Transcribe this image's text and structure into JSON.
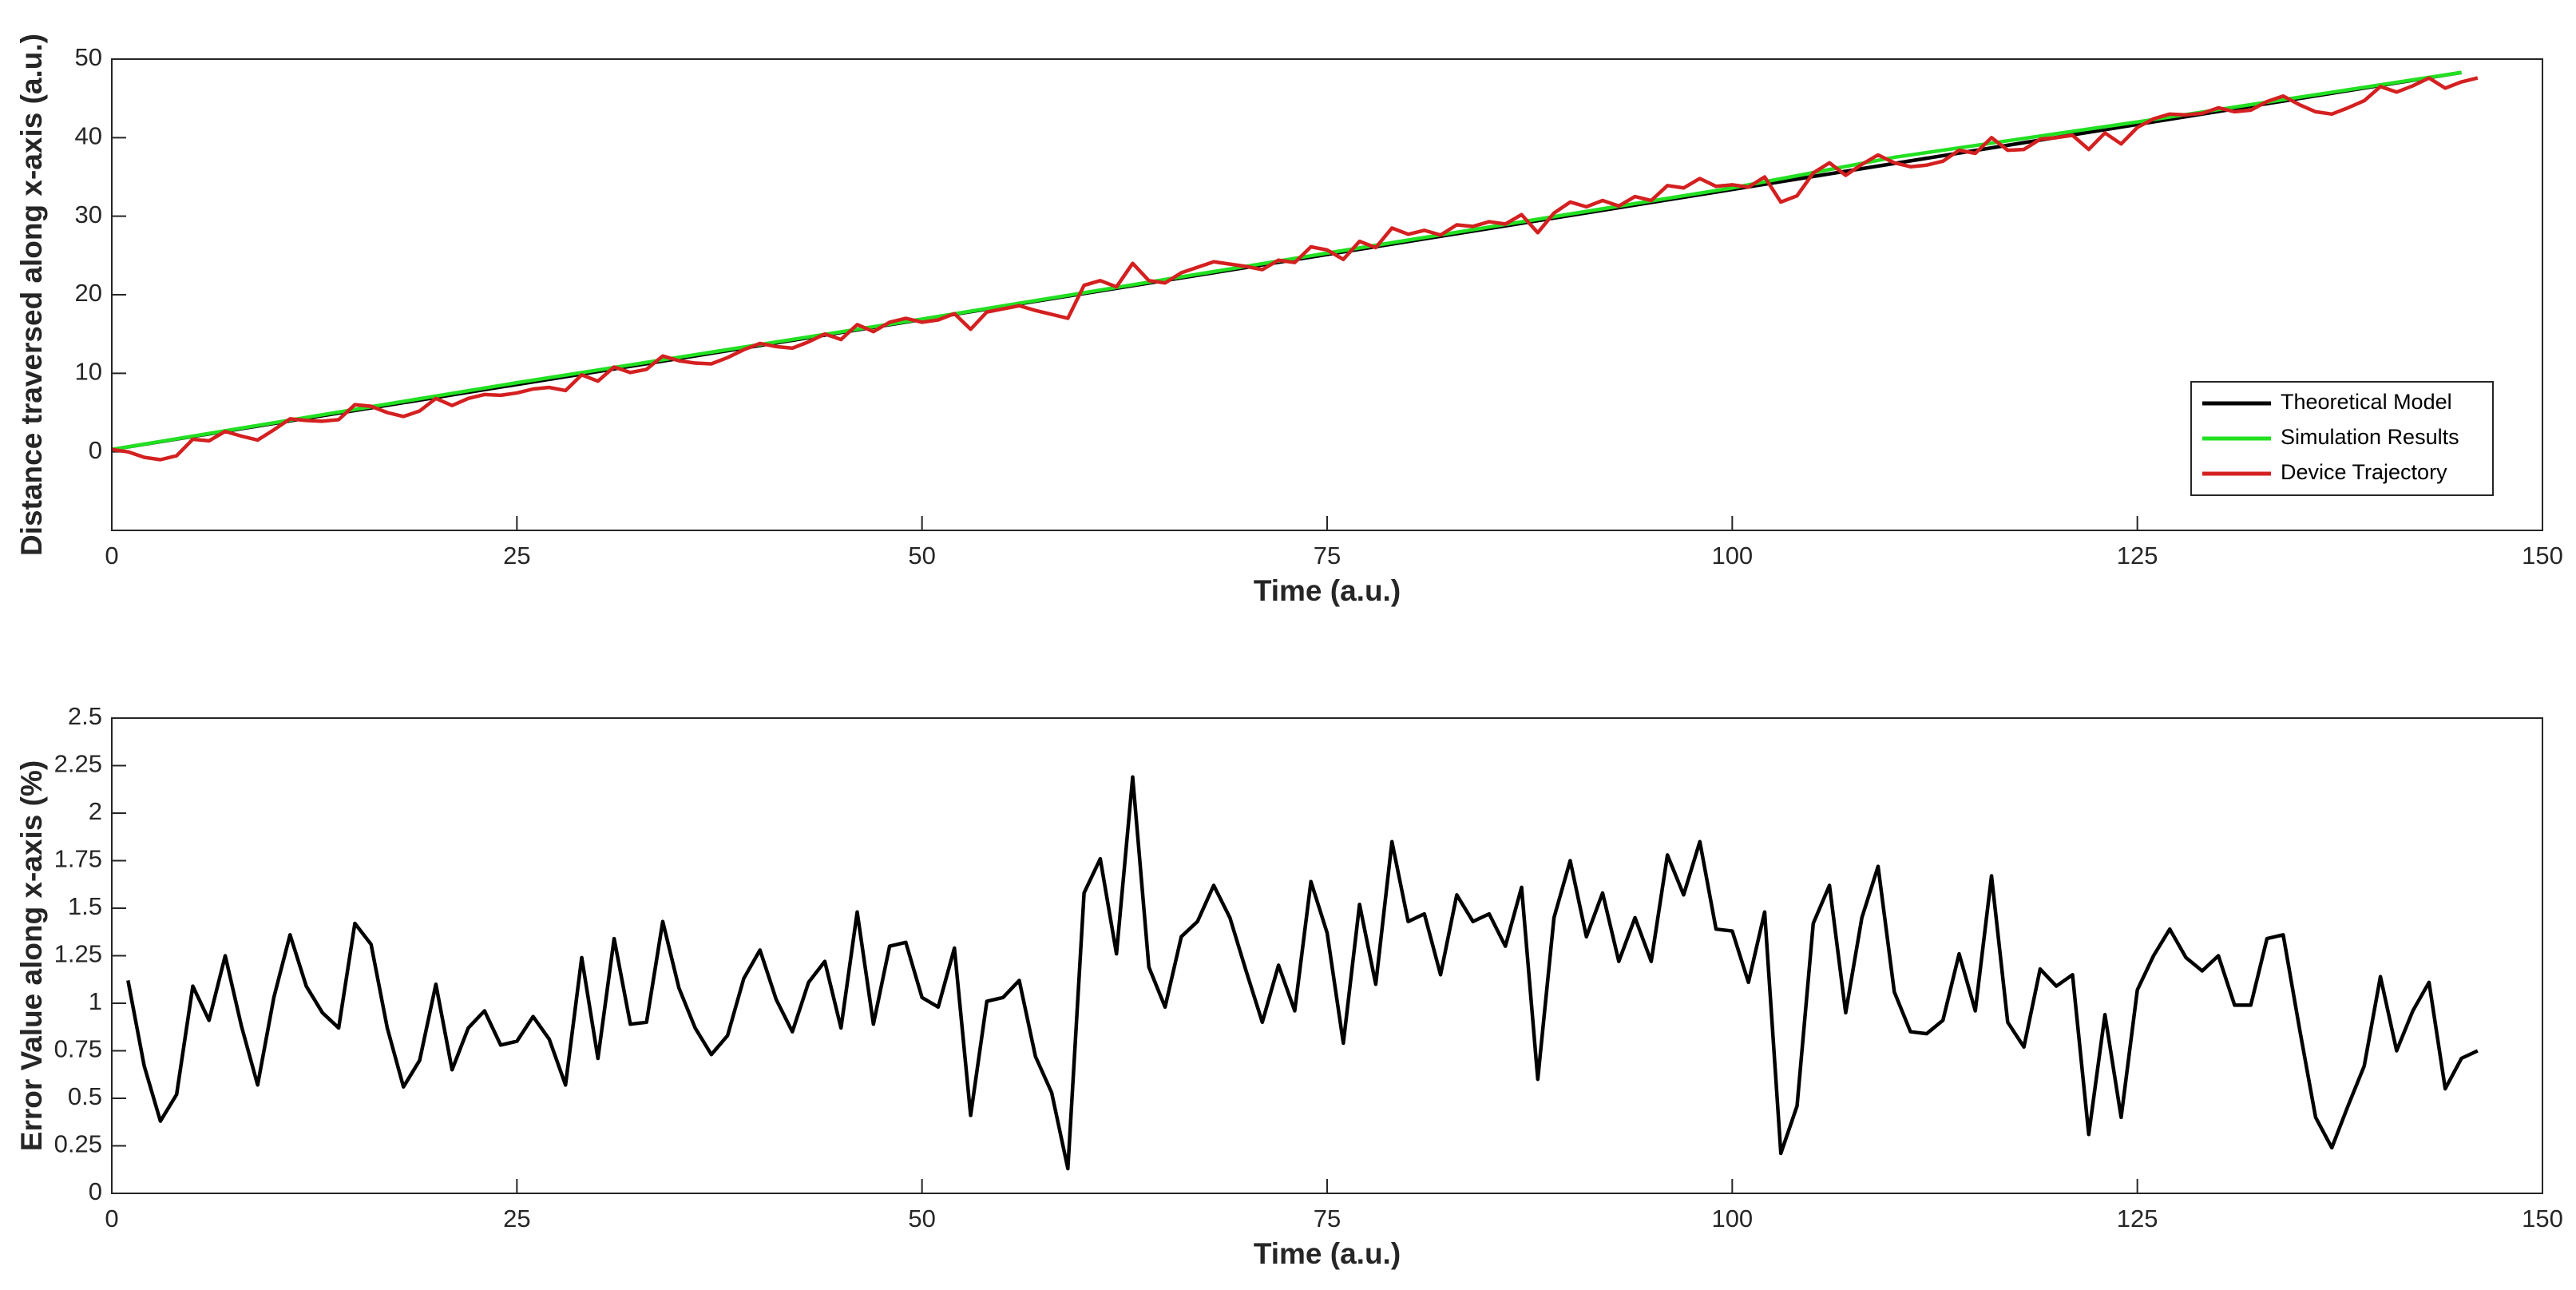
{
  "chart_data": [
    {
      "type": "line",
      "xlabel": "Time (a.u.)",
      "ylabel": "Distance traversed along x-axis (a.u.)",
      "xlim": [
        0,
        150
      ],
      "xticks": [
        0,
        25,
        50,
        75,
        100,
        125,
        150
      ],
      "ylim": [
        -10,
        50
      ],
      "yticks": [
        0,
        10,
        20,
        30,
        40,
        50
      ],
      "grid": false,
      "legend": "lower right",
      "series": [
        {
          "name": "Theoretical Model",
          "color": "#000000",
          "x": [
            0,
            145
          ],
          "values": [
            0.3,
            48.3
          ]
        },
        {
          "name": "Simulation Results",
          "color": "#22e022",
          "x": [
            0,
            25,
            50,
            75,
            100,
            110,
            125,
            145
          ],
          "values": [
            0.3,
            8.8,
            16.9,
            25.3,
            33.6,
            37.5,
            42.0,
            48.3
          ]
        },
        {
          "name": "Device Trajectory",
          "color": "#d42020",
          "x": [
            0,
            1,
            2,
            3,
            4,
            5,
            6,
            7,
            8,
            9,
            10,
            11,
            12,
            13,
            14,
            15,
            16,
            17,
            18,
            19,
            20,
            21,
            22,
            23,
            24,
            25,
            26,
            27,
            28,
            29,
            30,
            31,
            32,
            33,
            34,
            35,
            36,
            37,
            38,
            39,
            40,
            41,
            42,
            43,
            44,
            45,
            46,
            47,
            48,
            49,
            50,
            51,
            52,
            53,
            54,
            55,
            56,
            57,
            58,
            59,
            60,
            61,
            62,
            63,
            64,
            65,
            66,
            67,
            68,
            69,
            70,
            71,
            72,
            73,
            74,
            75,
            76,
            77,
            78,
            79,
            80,
            81,
            82,
            83,
            84,
            85,
            86,
            87,
            88,
            89,
            90,
            91,
            92,
            93,
            94,
            95,
            96,
            97,
            98,
            99,
            100,
            101,
            102,
            103,
            104,
            105,
            106,
            107,
            108,
            109,
            110,
            111,
            112,
            113,
            114,
            115,
            116,
            117,
            118,
            119,
            120,
            121,
            122,
            123,
            124,
            125,
            126,
            127,
            128,
            129,
            130,
            131,
            132,
            133,
            134,
            135,
            136,
            137,
            138,
            139,
            140,
            141,
            142,
            143,
            144,
            145,
            146
          ],
          "values": [
            0.3,
            0,
            -0.7,
            -1,
            -0.5,
            1.6,
            1.4,
            2.6,
            2,
            1.5,
            2.8,
            4.2,
            4,
            3.9,
            4.1,
            6,
            5.8,
            5,
            4.5,
            5.2,
            6.8,
            5.9,
            6.8,
            7.3,
            7.2,
            7.5,
            8,
            8.2,
            7.8,
            9.8,
            9,
            10.8,
            10.1,
            10.5,
            12.2,
            11.6,
            11.3,
            11.2,
            12,
            13,
            13.8,
            13.4,
            13.2,
            14,
            15,
            14.3,
            16.2,
            15.3,
            16.5,
            17,
            16.5,
            16.8,
            17.6,
            15.6,
            17.8,
            18.2,
            18.6,
            18,
            17.5,
            17,
            21.2,
            21.8,
            21,
            24,
            21.8,
            21.5,
            22.8,
            23.5,
            24.2,
            23.9,
            23.6,
            23.2,
            24.4,
            24.1,
            26.1,
            25.7,
            24.5,
            26.8,
            26,
            28.5,
            27.7,
            28.2,
            27.6,
            28.9,
            28.7,
            29.3,
            29,
            30.2,
            27.9,
            30.4,
            31.8,
            31.2,
            32,
            31.3,
            32.5,
            32,
            33.9,
            33.6,
            34.8,
            33.8,
            34,
            33.7,
            35,
            31.8,
            32.6,
            35.5,
            36.8,
            35.2,
            36.6,
            37.8,
            36.8,
            36.3,
            36.5,
            37,
            38.4,
            38,
            40,
            38.4,
            38.5,
            39.8,
            40,
            40.3,
            38.5,
            40.6,
            39.2,
            41.3,
            42.4,
            43,
            42.9,
            43.1,
            43.8,
            43.3,
            43.5,
            44.6,
            45.3,
            44.2,
            43.3,
            43,
            43.8,
            44.7,
            46.5,
            45.8,
            46.6,
            47.6,
            46.3,
            47.1,
            47.6
          ]
        }
      ]
    },
    {
      "type": "line",
      "xlabel": "Time (a.u.)",
      "ylabel": "Error Value along x-axis (%)",
      "color": "#000000",
      "xlim": [
        0,
        150
      ],
      "xticks": [
        0,
        25,
        50,
        75,
        100,
        125,
        150
      ],
      "ylim": [
        0,
        2.5
      ],
      "yticks": [
        0,
        0.25,
        0.5,
        0.75,
        1,
        1.25,
        1.5,
        1.75,
        2,
        2.25,
        2.5
      ],
      "grid": false,
      "x": [
        1,
        2,
        3,
        4,
        5,
        6,
        7,
        8,
        9,
        10,
        11,
        12,
        13,
        14,
        15,
        16,
        17,
        18,
        19,
        20,
        21,
        22,
        23,
        24,
        25,
        26,
        27,
        28,
        29,
        30,
        31,
        32,
        33,
        34,
        35,
        36,
        37,
        38,
        39,
        40,
        41,
        42,
        43,
        44,
        45,
        46,
        47,
        48,
        49,
        50,
        51,
        52,
        53,
        54,
        55,
        56,
        57,
        58,
        59,
        60,
        61,
        62,
        63,
        64,
        65,
        66,
        67,
        68,
        69,
        70,
        71,
        72,
        73,
        74,
        75,
        76,
        77,
        78,
        79,
        80,
        81,
        82,
        83,
        84,
        85,
        86,
        87,
        88,
        89,
        90,
        91,
        92,
        93,
        94,
        95,
        96,
        97,
        98,
        99,
        100,
        101,
        102,
        103,
        104,
        105,
        106,
        107,
        108,
        109,
        110,
        111,
        112,
        113,
        114,
        115,
        116,
        117,
        118,
        119,
        120,
        121,
        122,
        123,
        124,
        125,
        126,
        127,
        128,
        129,
        130,
        131,
        132,
        133,
        134,
        135,
        136,
        137,
        138,
        139,
        140,
        141,
        142,
        143,
        144,
        145,
        146
      ],
      "values": [
        1.12,
        0.67,
        0.38,
        0.52,
        1.09,
        0.91,
        1.25,
        0.88,
        0.57,
        1.03,
        1.36,
        1.09,
        0.95,
        0.87,
        1.42,
        1.31,
        0.87,
        0.56,
        0.7,
        1.1,
        0.65,
        0.87,
        0.96,
        0.78,
        0.8,
        0.93,
        0.81,
        0.57,
        1.24,
        0.71,
        1.34,
        0.89,
        0.9,
        1.43,
        1.08,
        0.87,
        0.73,
        0.83,
        1.13,
        1.28,
        1.02,
        0.85,
        1.11,
        1.22,
        0.87,
        1.48,
        0.89,
        1.3,
        1.32,
        1.03,
        0.98,
        1.29,
        0.41,
        1.01,
        1.03,
        1.12,
        0.72,
        0.53,
        0.13,
        1.58,
        1.76,
        1.26,
        2.19,
        1.19,
        0.98,
        1.35,
        1.43,
        1.62,
        1.45,
        1.17,
        0.9,
        1.2,
        0.96,
        1.64,
        1.37,
        0.79,
        1.52,
        1.1,
        1.85,
        1.43,
        1.47,
        1.15,
        1.57,
        1.43,
        1.47,
        1.3,
        1.61,
        0.6,
        1.45,
        1.75,
        1.35,
        1.58,
        1.22,
        1.45,
        1.22,
        1.78,
        1.57,
        1.85,
        1.39,
        1.38,
        1.11,
        1.48,
        0.21,
        0.46,
        1.42,
        1.62,
        0.95,
        1.45,
        1.72,
        1.06,
        0.85,
        0.84,
        0.91,
        1.26,
        0.96,
        1.67,
        0.9,
        0.77,
        1.18,
        1.09,
        1.15,
        0.31,
        0.94,
        0.4,
        1.07,
        1.25,
        1.39,
        1.24,
        1.17,
        1.25,
        0.99,
        0.99,
        1.34,
        1.36,
        0.87,
        0.4,
        0.24,
        0.46,
        0.67,
        1.14,
        0.75,
        0.96,
        1.11,
        0.55,
        0.71,
        0.75
      ]
    }
  ]
}
